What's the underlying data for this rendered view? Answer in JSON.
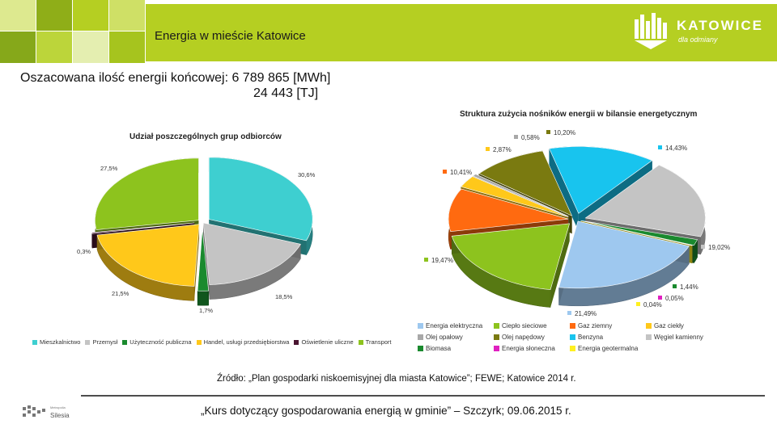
{
  "header": {
    "title": "Energia w mieście Katowice",
    "logo_name": "KATOWICE",
    "logo_tagline": "dla odmiany",
    "brand_color": "#b5cf22"
  },
  "energy": {
    "line1": "Oszacowana ilość energii końcowej: 6 789 865 [MWh]",
    "line2": "24 443 [TJ]"
  },
  "chart_data": [
    {
      "type": "pie",
      "title": "Udział poszczególnych grup odbiorców",
      "categories": [
        "Mieszkalnictwo",
        "Przemysł",
        "Użyteczność publiczna",
        "Handel, usługi przedsiębiorstwa",
        "Oświetlenie uliczne",
        "Transport"
      ],
      "values": [
        30.6,
        18.5,
        1.7,
        21.5,
        0.3,
        27.5
      ],
      "data_labels": [
        "30,6%",
        "18,5%",
        "1,7%",
        "21,5%",
        "0,3%",
        "27,5%"
      ],
      "colors": [
        "#3ecfd0",
        "#c4c4c4",
        "#1a8a2e",
        "#ffc81a",
        "#4a1530",
        "#8dc31e"
      ],
      "legend_position": "bottom"
    },
    {
      "type": "pie",
      "title": "Struktura zużycia nośników energii w bilansie energetycznym",
      "categories": [
        "Energia elektryczna",
        "Ciepło sieciowe",
        "Gaz ziemny",
        "Gaz ciekły",
        "Olej opałowy",
        "Olej napędowy",
        "Benzyna",
        "Węgiel kamienny",
        "Biomasa",
        "Energia słoneczna",
        "Energia geotermalna"
      ],
      "values": [
        21.49,
        19.47,
        10.41,
        2.87,
        0.58,
        10.2,
        14.43,
        19.02,
        1.44,
        0.05,
        0.04
      ],
      "data_labels": [
        "21,49%",
        "19,47%",
        "10,41%",
        "2,87%",
        "0,58%",
        "10,20%",
        "14,43%",
        "19,02%",
        "1,44%",
        "0,05%",
        "0,04%"
      ],
      "colors": [
        "#9ec8ef",
        "#8dc31e",
        "#ff6a10",
        "#ffc81a",
        "#a8a8a8",
        "#7a7a10",
        "#18c4ee",
        "#c4c4c4",
        "#1a8a2e",
        "#e020c0",
        "#fff020"
      ],
      "legend_position": "bottom"
    }
  ],
  "legend2_rows": [
    [
      {
        "label": "Energia elektryczna",
        "color": "#9ec8ef"
      },
      {
        "label": "Ciepło sieciowe",
        "color": "#8dc31e"
      },
      {
        "label": "Gaz ziemny",
        "color": "#ff6a10"
      },
      {
        "label": "Gaz ciekły",
        "color": "#ffc81a"
      }
    ],
    [
      {
        "label": "Olej opałowy",
        "color": "#a8a8a8"
      },
      {
        "label": "Olej napędowy",
        "color": "#7a7a10"
      },
      {
        "label": "Benzyna",
        "color": "#18c4ee"
      },
      {
        "label": "Węgiel kamienny",
        "color": "#c4c4c4"
      }
    ],
    [
      {
        "label": "Biomasa",
        "color": "#1a8a2e"
      },
      {
        "label": "Energia słoneczna",
        "color": "#e020c0"
      },
      {
        "label": "Energia geotermalna",
        "color": "#fff020"
      }
    ]
  ],
  "footer": {
    "source": "Źródło: „Plan gospodarki niskoemisyjnej dla miasta Katowice”; FEWE; Katowice 2014 r.",
    "course": "„Kurs dotyczący gospodarowania energią w gminie” – Szczyrk; 09.06.2015 r.",
    "silesia_small": "Metropolia",
    "silesia_name": "Silesia"
  }
}
